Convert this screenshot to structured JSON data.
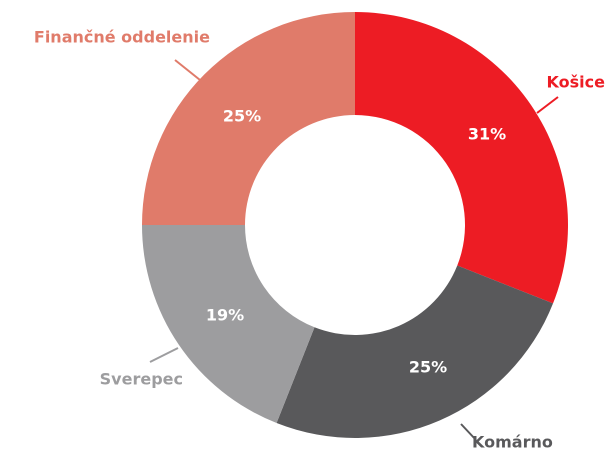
{
  "chart_data": {
    "type": "donut",
    "categories": [
      "Košice",
      "Komárno",
      "Sverepec",
      "Finančné oddelenie"
    ],
    "values": [
      31,
      25,
      19,
      25
    ],
    "value_labels": [
      "31%",
      "25%",
      "19%",
      "25%"
    ],
    "colors": [
      "#ed1c24",
      "#59595b",
      "#9d9d9f",
      "#e07b6a"
    ]
  }
}
